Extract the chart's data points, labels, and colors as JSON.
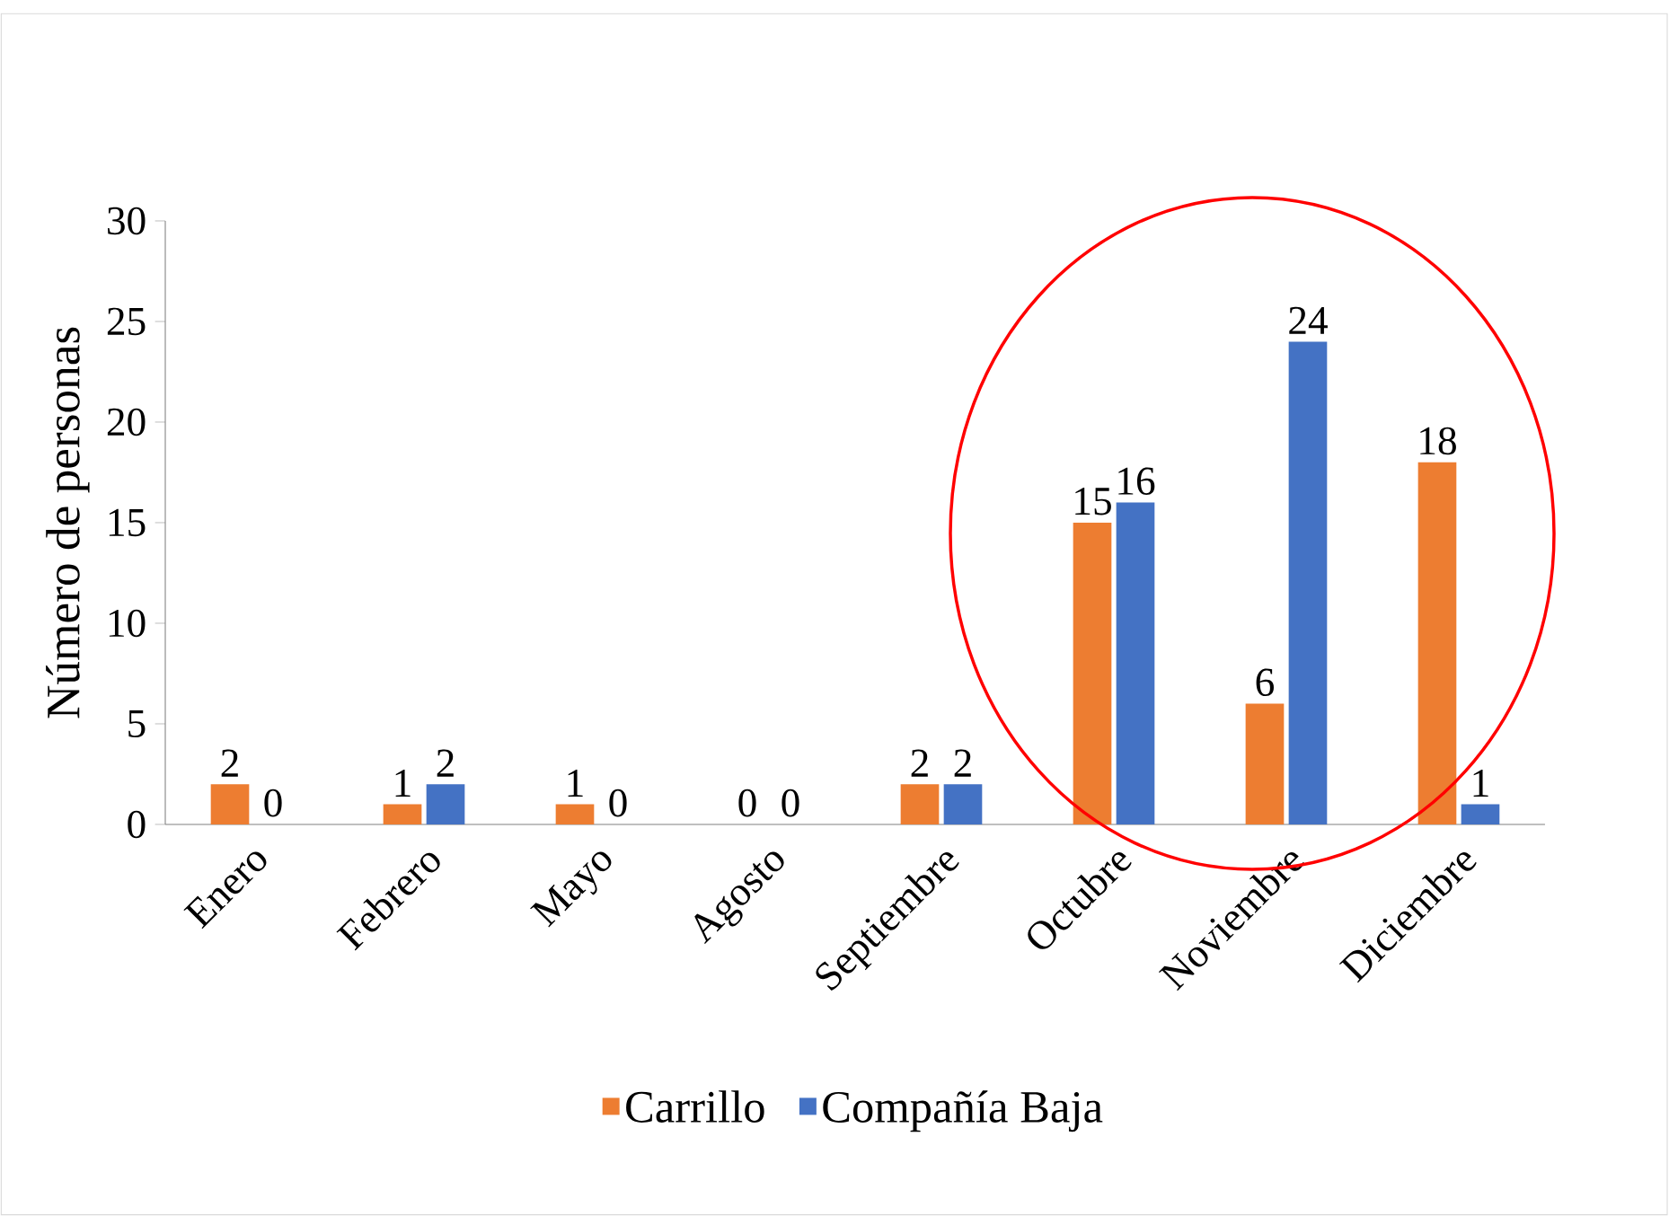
{
  "chart_data": {
    "type": "bar",
    "ylabel": "Número de personas",
    "categories": [
      "Enero",
      "Febrero",
      "Mayo",
      "Agosto",
      "Septiembre",
      "Octubre",
      "Noviembre",
      "Diciembre"
    ],
    "series": [
      {
        "name": "Carrillo",
        "color": "#ed7d31",
        "values": [
          2,
          1,
          1,
          0,
          2,
          15,
          6,
          18
        ]
      },
      {
        "name": "Compañía Baja",
        "color": "#4472c4",
        "values": [
          0,
          2,
          0,
          0,
          2,
          16,
          24,
          1
        ]
      }
    ],
    "ylim": [
      0,
      30
    ],
    "yticks": [
      0,
      5,
      10,
      15,
      20,
      25,
      30
    ],
    "data_labels": true,
    "legend": "bottom",
    "grid": false
  }
}
